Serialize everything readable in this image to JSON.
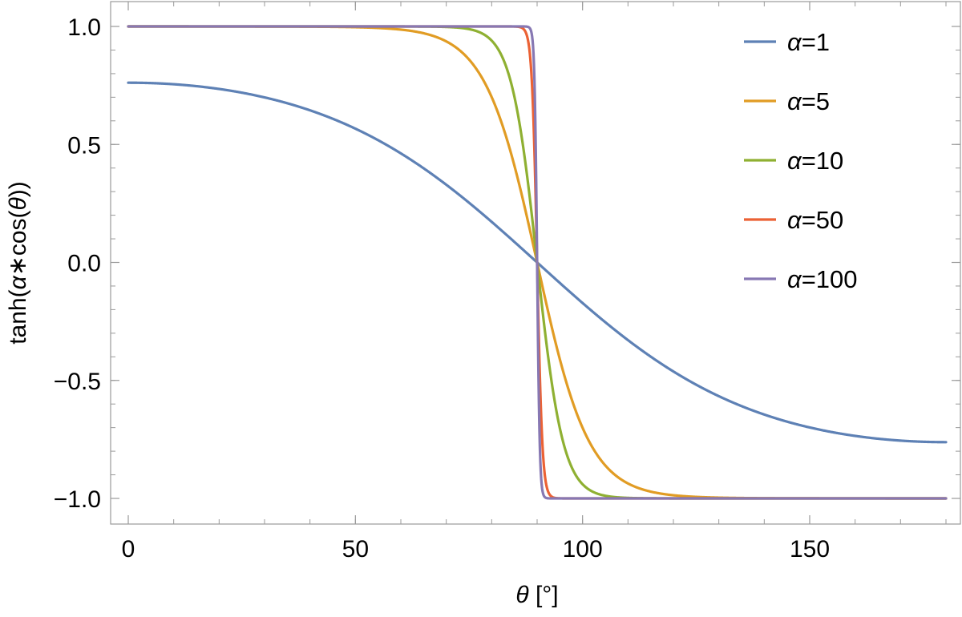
{
  "chart_data": {
    "type": "line",
    "xlabel_symbol": "θ",
    "xlabel_unit": " [°]",
    "ylabel_prefix": "tanh(",
    "ylabel_symbol": "α",
    "ylabel_op": "∗cos(",
    "ylabel_theta": "θ",
    "ylabel_suffix": "))",
    "xlim": [
      0,
      180
    ],
    "ylim": [
      -1.1,
      1.05
    ],
    "x_ticks": [
      0,
      50,
      100,
      150
    ],
    "x_tick_labels": [
      "0",
      "50",
      "100",
      "150"
    ],
    "y_ticks": [
      1.0,
      0.5,
      0.0,
      -0.5,
      -1.0
    ],
    "y_tick_labels": [
      "1.0",
      "0.5",
      "0.0",
      "−0.5",
      "−1.0"
    ],
    "x_minor_step": 10,
    "y_minor_step": 0.1,
    "grid": false,
    "legend_position": "top-right",
    "function": "tanh(alpha*cos(theta))",
    "series": [
      {
        "name": "α=1",
        "alpha": 1,
        "color": "#5e81b5"
      },
      {
        "name": "α=5",
        "alpha": 5,
        "color": "#e19c24"
      },
      {
        "name": "α=10",
        "alpha": 10,
        "color": "#8fb032"
      },
      {
        "name": "α=50",
        "alpha": 50,
        "color": "#eb6235"
      },
      {
        "name": "α=100",
        "alpha": 100,
        "color": "#8778b3"
      }
    ]
  }
}
